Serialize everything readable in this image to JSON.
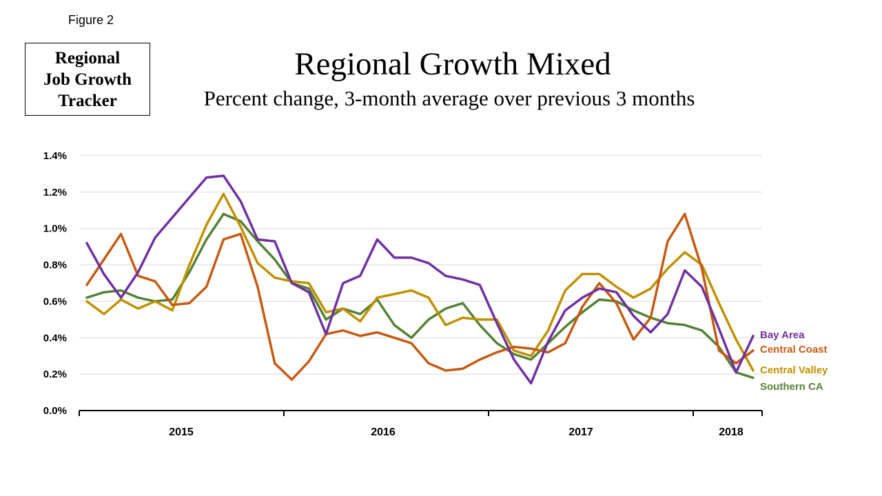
{
  "figure_label": "Figure 2",
  "tracker_box": {
    "line1": "Regional",
    "line2": "Job Growth",
    "line3": "Tracker"
  },
  "chart_data": {
    "type": "line",
    "title": "Regional Growth Mixed",
    "subtitle": "Percent change, 3-month average over previous 3 months",
    "ylim": [
      0,
      1.4
    ],
    "y_ticks": [
      0,
      0.2,
      0.4,
      0.6,
      0.8,
      1.0,
      1.2,
      1.4
    ],
    "y_tick_labels": [
      "0.0%",
      "0.2%",
      "0.4%",
      "0.6%",
      "0.8%",
      "1.0%",
      "1.2%",
      "1.4%"
    ],
    "x_year_labels": [
      "2015",
      "2016",
      "2017",
      "2018"
    ],
    "grid": true,
    "legend": "right-end labels",
    "series": [
      {
        "name": "Bay Area",
        "color": "#7030a0",
        "values": [
          0.92,
          0.75,
          0.62,
          0.76,
          0.95,
          1.06,
          1.17,
          1.28,
          1.29,
          1.15,
          0.94,
          0.93,
          0.7,
          0.65,
          0.42,
          0.7,
          0.74,
          0.94,
          0.84,
          0.84,
          0.81,
          0.74,
          0.72,
          0.69,
          0.48,
          0.28,
          0.15,
          0.38,
          0.55,
          0.62,
          0.67,
          0.65,
          0.52,
          0.43,
          0.53,
          0.77,
          0.68,
          0.45,
          0.21,
          0.41
        ]
      },
      {
        "name": "Central Coast",
        "color": "#c55a11",
        "values": [
          0.69,
          0.83,
          0.97,
          0.74,
          0.71,
          0.58,
          0.59,
          0.68,
          0.94,
          0.97,
          0.68,
          0.26,
          0.17,
          0.27,
          0.42,
          0.44,
          0.41,
          0.43,
          0.4,
          0.37,
          0.26,
          0.22,
          0.23,
          0.28,
          0.32,
          0.35,
          0.34,
          0.32,
          0.37,
          0.57,
          0.7,
          0.59,
          0.39,
          0.51,
          0.93,
          1.08,
          0.78,
          0.33,
          0.26,
          0.33
        ]
      },
      {
        "name": "Central Valley",
        "color": "#bf9000",
        "values": [
          0.6,
          0.53,
          0.61,
          0.56,
          0.6,
          0.55,
          0.8,
          1.02,
          1.19,
          1.01,
          0.81,
          0.73,
          0.71,
          0.7,
          0.54,
          0.56,
          0.49,
          0.62,
          0.64,
          0.66,
          0.62,
          0.47,
          0.51,
          0.5,
          0.5,
          0.33,
          0.3,
          0.44,
          0.66,
          0.75,
          0.75,
          0.68,
          0.62,
          0.67,
          0.78,
          0.87,
          0.8,
          0.59,
          0.39,
          0.22
        ]
      },
      {
        "name": "Southern CA",
        "color": "#548235",
        "values": [
          0.62,
          0.65,
          0.66,
          0.62,
          0.6,
          0.61,
          0.76,
          0.94,
          1.08,
          1.04,
          0.93,
          0.83,
          0.7,
          0.67,
          0.5,
          0.56,
          0.53,
          0.61,
          0.47,
          0.4,
          0.5,
          0.56,
          0.59,
          0.47,
          0.37,
          0.31,
          0.28,
          0.37,
          0.46,
          0.54,
          0.61,
          0.6,
          0.55,
          0.51,
          0.48,
          0.47,
          0.44,
          0.35,
          0.21,
          0.18
        ]
      }
    ]
  }
}
